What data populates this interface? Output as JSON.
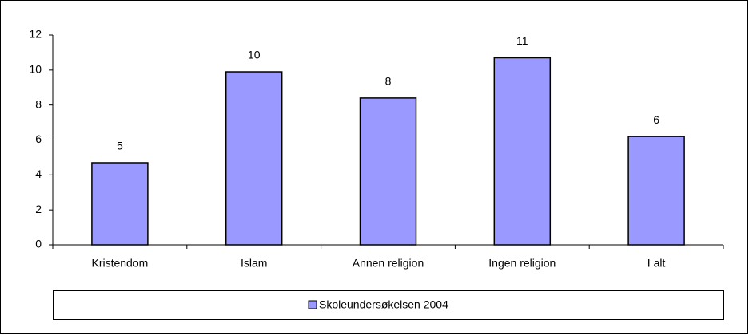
{
  "chart_data": {
    "type": "bar",
    "categories": [
      "Kristendom",
      "Islam",
      "Annen religion",
      "Ingen religion",
      "I alt"
    ],
    "series": [
      {
        "name": "Skoleundersøkelsen 2004",
        "color": "#9999ff",
        "values": [
          4.7,
          9.9,
          8.4,
          10.7,
          6.2
        ],
        "value_labels": [
          "5",
          "10",
          "8",
          "11",
          "6"
        ]
      }
    ],
    "ylim": [
      0,
      12
    ],
    "yticks": [
      0,
      2,
      4,
      6,
      8,
      10,
      12
    ],
    "grid": false,
    "legend": "bottom"
  }
}
